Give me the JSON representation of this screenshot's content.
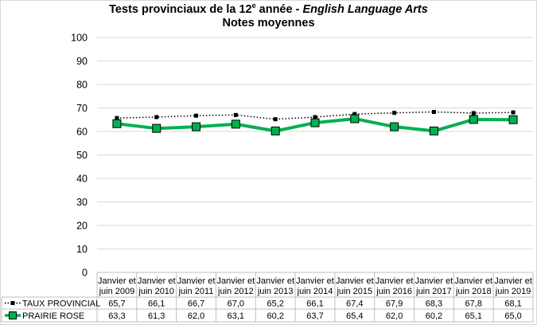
{
  "chart_data": {
    "type": "line",
    "title_line1_prefix": "Tests provinciaux de la 12",
    "title_line1_sup": "e",
    "title_line1_mid": " année - ",
    "title_line1_italic": "English Language Arts",
    "title_line2": "Notes moyennes",
    "ylim": [
      0,
      100
    ],
    "yticks": [
      0,
      10,
      20,
      30,
      40,
      50,
      60,
      70,
      80,
      90,
      100
    ],
    "grid": true,
    "legend": "data-table-left",
    "categories": [
      [
        "Janvier et",
        "juin 2009"
      ],
      [
        "Janvier et",
        "juin 2010"
      ],
      [
        "Janvier et",
        "juin 2011"
      ],
      [
        "Janvier et",
        "juin 2012"
      ],
      [
        "Janvier et",
        "juin 2013"
      ],
      [
        "Janvier et",
        "juin 2014"
      ],
      [
        "Janvier et",
        "juin 2015"
      ],
      [
        "Janvier et",
        "juin 2016"
      ],
      [
        "Janvier et",
        "juin 2017"
      ],
      [
        "Janvier et",
        "juin 2018"
      ],
      [
        "Janvier et",
        "juin 2019"
      ]
    ],
    "series": [
      {
        "name": "TAUX PROVINCIAL",
        "values": [
          65.7,
          66.1,
          66.7,
          67.0,
          65.2,
          66.1,
          67.4,
          67.9,
          68.3,
          67.8,
          68.1
        ],
        "labels": [
          "65,7",
          "66,1",
          "66,7",
          "67,0",
          "65,2",
          "66,1",
          "67,4",
          "67,9",
          "68,3",
          "67,8",
          "68,1"
        ],
        "color": "#000000",
        "style": "dotted"
      },
      {
        "name": "PRAIRIE ROSE",
        "values": [
          63.3,
          61.3,
          62.0,
          63.1,
          60.2,
          63.7,
          65.4,
          62.0,
          60.2,
          65.1,
          65.0
        ],
        "labels": [
          "63,3",
          "61,3",
          "62,0",
          "63,1",
          "60,2",
          "63,7",
          "65,4",
          "62,0",
          "60,2",
          "65,1",
          "65,0"
        ],
        "color": "#00b050",
        "style": "solid"
      }
    ]
  }
}
